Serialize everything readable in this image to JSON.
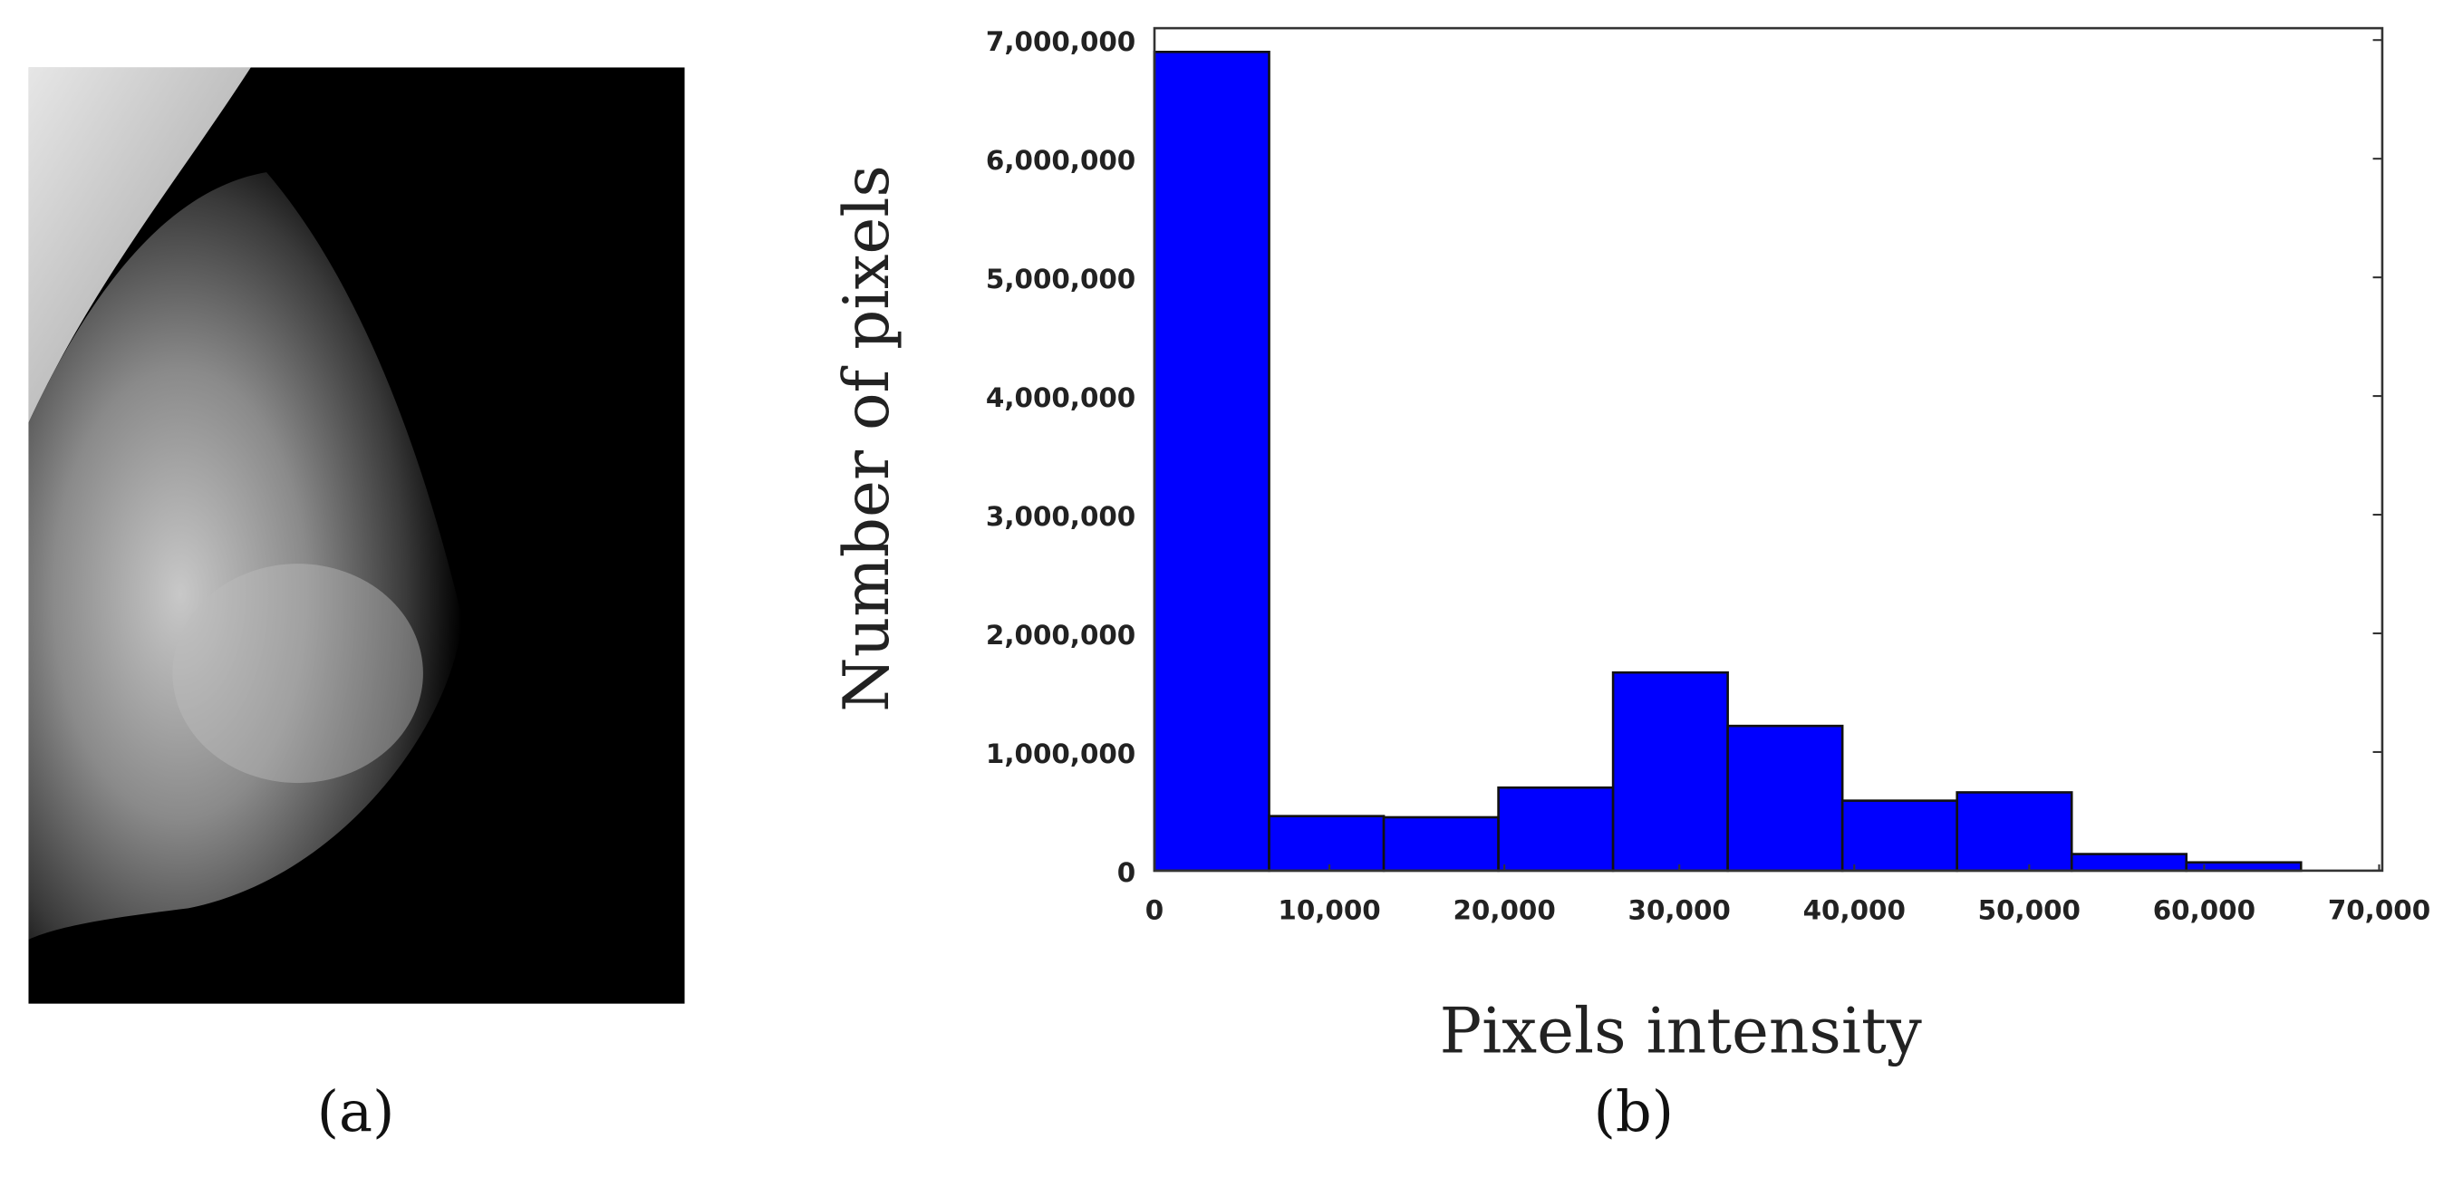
{
  "image_panel": {
    "label": "(a)"
  },
  "chart_data": {
    "type": "histogram",
    "panel_label": "(b)",
    "x_label": "Pixels intensity",
    "y_label": "Number of pixels",
    "bins": [
      0,
      6553.5,
      13107,
      19660.5,
      26214,
      32767.5,
      39321,
      45874.5,
      52428,
      58981.5,
      65535
    ],
    "values": [
      6900000,
      460000,
      450000,
      700000,
      1670000,
      1220000,
      590000,
      660000,
      140000,
      70000
    ],
    "color": "#0000ff",
    "xlim": [
      0,
      70000
    ],
    "xticks": [
      0,
      {
        "value": 10000,
        "label": "10,000"
      },
      {
        "value": 20000,
        "label": "20,000"
      },
      {
        "value": 30000,
        "label": "30,000"
      },
      {
        "value": 40000,
        "label": "40,000"
      },
      {
        "value": 50000,
        "label": "50,000"
      },
      {
        "value": 60000,
        "label": "60,000"
      },
      {
        "value": 70000,
        "label": "70,000"
      }
    ],
    "ylim": [
      0,
      7100000
    ],
    "yticks": [
      0,
      {
        "value": 1000000,
        "label": "1,000,000"
      },
      {
        "value": 2000000,
        "label": "2,000,000"
      },
      {
        "value": 3000000,
        "label": "3,000,000"
      },
      {
        "value": 4000000,
        "label": "4,000,000"
      },
      {
        "value": 5000000,
        "label": "5,000,000"
      },
      {
        "value": 6000000,
        "label": "6,000,000"
      },
      {
        "value": 7000000,
        "label": "7,000,000"
      }
    ]
  }
}
